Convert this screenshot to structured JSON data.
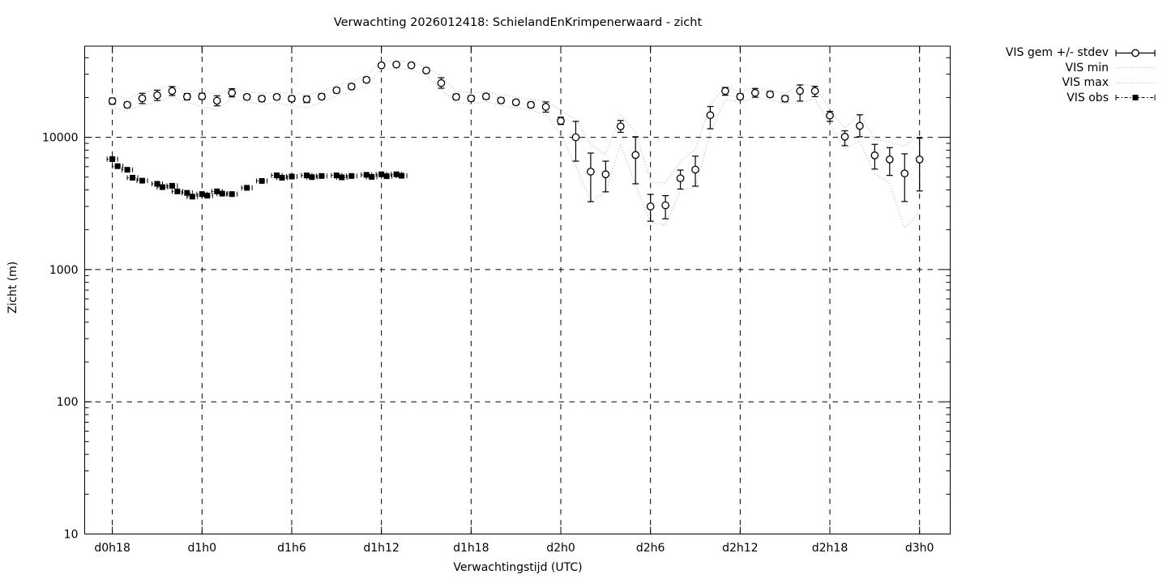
{
  "title": "Verwachting 2026012418: SchielandEnKrimpenerwaard - zicht",
  "colors": {
    "foreground": "#000000",
    "minmax_dotted": "#b3b3b3",
    "background": "#ffffff"
  },
  "legend": {
    "entries": [
      {
        "label": "VIS gem +/- stdev",
        "sample": "errorbar-circle"
      },
      {
        "label": "VIS min",
        "sample": "dotted"
      },
      {
        "label": "VIS max",
        "sample": "dotted"
      },
      {
        "label": "VIS obs",
        "sample": "square-dashdot"
      }
    ]
  },
  "chart_data": {
    "type": "line",
    "title": "Verwachting 2026012418: SchielandEnKrimpenerwaard - zicht",
    "xlabel": "Verwachtingstijd (UTC)",
    "ylabel": "Zicht (m)",
    "yscale": "log",
    "grid": "dashed-at-major-ticks",
    "legend_position": "outside-top-right",
    "xlim": [
      16.15,
      74.05
    ],
    "ylim": [
      10,
      48900
    ],
    "x_unit": "hours since d0h0",
    "xticks": [
      {
        "t": 18,
        "label": "d0h18"
      },
      {
        "t": 24,
        "label": "d1h0"
      },
      {
        "t": 30,
        "label": "d1h6"
      },
      {
        "t": 36,
        "label": "d1h12"
      },
      {
        "t": 42,
        "label": "d1h18"
      },
      {
        "t": 48,
        "label": "d2h0"
      },
      {
        "t": 54,
        "label": "d2h6"
      },
      {
        "t": 60,
        "label": "d2h12"
      },
      {
        "t": 66,
        "label": "d2h18"
      },
      {
        "t": 72,
        "label": "d3h0"
      }
    ],
    "yticks": [
      {
        "v": 10,
        "label": "10"
      },
      {
        "v": 100,
        "label": "100"
      },
      {
        "v": 1000,
        "label": "1000"
      },
      {
        "v": 10000,
        "label": "10000"
      }
    ],
    "x": [
      18,
      19,
      20,
      21,
      22,
      23,
      24,
      25,
      26,
      27,
      28,
      29,
      30,
      31,
      32,
      33,
      34,
      35,
      36,
      37,
      38,
      39,
      40,
      41,
      42,
      43,
      44,
      45,
      46,
      47,
      48,
      49,
      50,
      51,
      52,
      53,
      54,
      55,
      56,
      57,
      58,
      59,
      60,
      61,
      62,
      63,
      64,
      65,
      66,
      67,
      68,
      69,
      70,
      71,
      72
    ],
    "series": [
      {
        "name": "VIS gem +/- stdev",
        "style": "errorbar-circle",
        "values": [
          18800,
          17600,
          19700,
          20800,
          22400,
          20300,
          20400,
          18900,
          21700,
          20200,
          19600,
          20200,
          19600,
          19400,
          20300,
          22700,
          24200,
          27200,
          35000,
          35500,
          35000,
          32000,
          25700,
          20200,
          19700,
          20400,
          19000,
          18400,
          17600,
          17000,
          13300,
          10000,
          5500,
          5250,
          12100,
          7350,
          3000,
          3060,
          4900,
          5700,
          14700,
          22400,
          20300,
          21700,
          21100,
          19600,
          22400,
          22400,
          14600,
          10100,
          12200,
          7300,
          6800,
          5330,
          6800
        ],
        "err_lo": [
          17800,
          16800,
          18000,
          19000,
          20700,
          19200,
          19400,
          17300,
          20200,
          19300,
          18700,
          19300,
          18700,
          18300,
          19400,
          21700,
          23200,
          26000,
          34000,
          34500,
          34000,
          30800,
          23500,
          19300,
          18800,
          19500,
          18200,
          17600,
          16800,
          15500,
          12500,
          6600,
          3260,
          3870,
          10900,
          4450,
          2320,
          2420,
          4060,
          4270,
          11600,
          20800,
          19400,
          20100,
          20200,
          18600,
          18800,
          20300,
          13200,
          8650,
          10100,
          5750,
          5150,
          3270,
          3930
        ],
        "err_hi": [
          19800,
          18400,
          21500,
          22700,
          24200,
          21400,
          21500,
          20600,
          23300,
          21100,
          20500,
          21100,
          20500,
          20500,
          21300,
          23700,
          25300,
          28400,
          36100,
          36600,
          36100,
          33200,
          28200,
          21200,
          20600,
          21300,
          19900,
          19200,
          18400,
          18500,
          14200,
          13200,
          7600,
          6600,
          13400,
          10100,
          3700,
          3620,
          5650,
          7200,
          17100,
          23800,
          21300,
          23400,
          22200,
          20600,
          24900,
          24300,
          15700,
          11200,
          14800,
          8850,
          8350,
          7500,
          9850
        ]
      },
      {
        "name": "VIS min",
        "style": "dotted",
        "values": [
          16800,
          15900,
          17500,
          18500,
          20200,
          18400,
          17000,
          16200,
          19600,
          18500,
          17800,
          18300,
          17200,
          16800,
          18400,
          20600,
          22000,
          24800,
          32500,
          33000,
          32500,
          29500,
          23000,
          18300,
          17900,
          18600,
          17300,
          16700,
          16000,
          14800,
          10400,
          6100,
          3300,
          3800,
          8900,
          4400,
          2280,
          2170,
          3950,
          4200,
          10800,
          19200,
          18600,
          19800,
          19300,
          18000,
          18200,
          19500,
          12700,
          8200,
          9400,
          5300,
          4500,
          2050,
          2700
        ]
      },
      {
        "name": "VIS max",
        "style": "dotted",
        "values": [
          21000,
          19500,
          21800,
          23200,
          24500,
          22300,
          22600,
          21000,
          23800,
          22000,
          21400,
          22000,
          21500,
          21000,
          22200,
          24800,
          26400,
          29600,
          37200,
          37700,
          37200,
          34000,
          28800,
          22200,
          21600,
          22400,
          20800,
          20200,
          19300,
          18800,
          16000,
          13600,
          8800,
          7400,
          14900,
          11000,
          4600,
          4500,
          6600,
          8100,
          17600,
          24200,
          22200,
          23600,
          22800,
          21300,
          25200,
          24600,
          16200,
          11600,
          15100,
          9700,
          9200,
          8600,
          10800
        ]
      },
      {
        "name": "VIS obs",
        "style": "square-dashdot",
        "points": [
          [
            18.0,
            6840
          ],
          [
            18.35,
            6050
          ],
          [
            19.0,
            5680
          ],
          [
            19.35,
            4950
          ],
          [
            20.0,
            4700
          ],
          [
            21.0,
            4450
          ],
          [
            21.35,
            4200
          ],
          [
            22.0,
            4300
          ],
          [
            22.35,
            3900
          ],
          [
            23.0,
            3800
          ],
          [
            23.35,
            3560
          ],
          [
            24.0,
            3720
          ],
          [
            24.35,
            3620
          ],
          [
            25.0,
            3900
          ],
          [
            25.35,
            3750
          ],
          [
            26.0,
            3720
          ],
          [
            27.0,
            4150
          ],
          [
            28.0,
            4680
          ],
          [
            29.0,
            5150
          ],
          [
            29.35,
            4950
          ],
          [
            30.0,
            5050
          ],
          [
            31.0,
            5150
          ],
          [
            31.35,
            5000
          ],
          [
            32.0,
            5100
          ],
          [
            33.0,
            5150
          ],
          [
            33.35,
            4980
          ],
          [
            34.0,
            5100
          ],
          [
            35.0,
            5200
          ],
          [
            35.35,
            5020
          ],
          [
            36.0,
            5250
          ],
          [
            36.35,
            5080
          ],
          [
            37.0,
            5250
          ],
          [
            37.35,
            5120
          ]
        ]
      }
    ]
  }
}
